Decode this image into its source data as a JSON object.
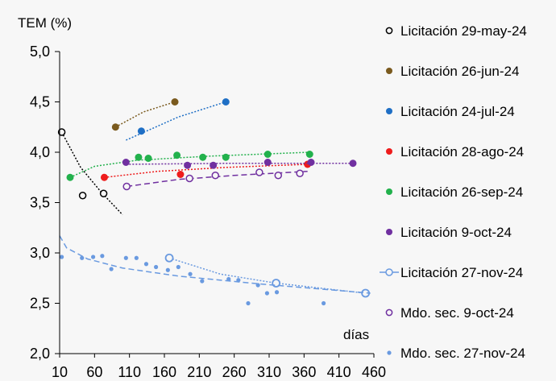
{
  "chart_data": {
    "type": "scatter",
    "title": "",
    "ylabel": "TEM (%)",
    "xlabel": "días",
    "xlim": [
      10,
      460
    ],
    "ylim": [
      2.0,
      5.0
    ],
    "xticks": [
      "10",
      "60",
      "110",
      "160",
      "210",
      "260",
      "310",
      "360",
      "410",
      "460"
    ],
    "yticks": [
      "2,0",
      "2,5",
      "3,0",
      "3,5",
      "4,0",
      "4,5",
      "5,0"
    ],
    "legend_position": "right",
    "series": [
      {
        "name": "Licitación 29-may-24",
        "marker": "open-circle",
        "color": "#000000",
        "points": [
          [
            13,
            4.2
          ],
          [
            43,
            3.57
          ],
          [
            73,
            3.59
          ]
        ],
        "trend": {
          "style": "dotted",
          "points": [
            [
              13,
              4.2
            ],
            [
              40,
              3.85
            ],
            [
              70,
              3.6
            ],
            [
              100,
              3.38
            ]
          ]
        }
      },
      {
        "name": "Licitación 26-jun-24",
        "marker": "filled-circle",
        "color": "#7a5a1e",
        "points": [
          [
            90,
            4.25
          ],
          [
            175,
            4.5
          ]
        ],
        "trend": {
          "style": "dotted",
          "points": [
            [
              90,
              4.25
            ],
            [
              130,
              4.4
            ],
            [
              175,
              4.5
            ]
          ]
        }
      },
      {
        "name": "Licitación 24-jul-24",
        "marker": "filled-circle",
        "color": "#1f6fc5",
        "points": [
          [
            127,
            4.21
          ],
          [
            248,
            4.5
          ]
        ],
        "trend": {
          "style": "dotted",
          "points": [
            [
              105,
              4.12
            ],
            [
              180,
              4.35
            ],
            [
              248,
              4.5
            ]
          ]
        }
      },
      {
        "name": "Licitación 28-ago-24",
        "marker": "filled-circle",
        "color": "#ee1c1c",
        "points": [
          [
            74,
            3.75
          ],
          [
            183,
            3.78
          ],
          [
            365,
            3.88
          ]
        ],
        "trend": {
          "style": "dotted",
          "points": [
            [
              74,
              3.75
            ],
            [
              150,
              3.81
            ],
            [
              250,
              3.85
            ],
            [
              365,
              3.88
            ]
          ]
        }
      },
      {
        "name": "Licitación 26-sep-24",
        "marker": "filled-circle",
        "color": "#22b14c",
        "points": [
          [
            25,
            3.75
          ],
          [
            123,
            3.95
          ],
          [
            137,
            3.94
          ],
          [
            178,
            3.97
          ],
          [
            215,
            3.95
          ],
          [
            248,
            3.95
          ],
          [
            308,
            3.98
          ],
          [
            368,
            3.98
          ]
        ],
        "trend": {
          "style": "dotted",
          "points": [
            [
              25,
              3.75
            ],
            [
              60,
              3.86
            ],
            [
              120,
              3.92
            ],
            [
              220,
              3.96
            ],
            [
              368,
              4.0
            ]
          ]
        }
      },
      {
        "name": "Licitación 9-oct-24",
        "marker": "filled-circle",
        "color": "#7030a0",
        "points": [
          [
            105,
            3.9
          ],
          [
            193,
            3.87
          ],
          [
            230,
            3.87
          ],
          [
            308,
            3.9
          ],
          [
            370,
            3.9
          ],
          [
            430,
            3.89
          ]
        ],
        "trend": {
          "style": "dotted",
          "points": [
            [
              105,
              3.88
            ],
            [
              250,
              3.89
            ],
            [
              430,
              3.89
            ]
          ]
        }
      },
      {
        "name": "Licitación 27-nov-24",
        "marker": "open-circle-line",
        "color": "#6a9ae0",
        "points": [
          [
            167,
            2.95
          ],
          [
            320,
            2.7
          ],
          [
            448,
            2.6
          ]
        ],
        "trend": {
          "style": "dotted",
          "points": [
            [
              167,
              2.95
            ],
            [
              240,
              2.79
            ],
            [
              320,
              2.7
            ],
            [
              448,
              2.6
            ]
          ]
        }
      },
      {
        "name": "Mdo. sec. 9-oct-24",
        "marker": "open-circle",
        "color": "#7030a0",
        "points": [
          [
            106,
            3.66
          ],
          [
            196,
            3.74
          ],
          [
            233,
            3.77
          ],
          [
            296,
            3.8
          ],
          [
            323,
            3.77
          ],
          [
            354,
            3.79
          ]
        ],
        "trend": {
          "style": "dashed",
          "points": [
            [
              106,
              3.66
            ],
            [
              180,
              3.73
            ],
            [
              260,
              3.77
            ],
            [
              365,
              3.81
            ]
          ]
        }
      },
      {
        "name": "Mdo. sec. 27-nov-24",
        "marker": "small-dot",
        "color": "#6a9ae0",
        "points": [
          [
            13,
            2.96
          ],
          [
            42,
            2.95
          ],
          [
            58,
            2.96
          ],
          [
            71,
            2.97
          ],
          [
            84,
            2.84
          ],
          [
            105,
            2.95
          ],
          [
            120,
            2.95
          ],
          [
            134,
            2.89
          ],
          [
            148,
            2.86
          ],
          [
            165,
            2.83
          ],
          [
            180,
            2.86
          ],
          [
            197,
            2.79
          ],
          [
            214,
            2.72
          ],
          [
            252,
            2.74
          ],
          [
            266,
            2.73
          ],
          [
            280,
            2.5
          ],
          [
            294,
            2.68
          ],
          [
            307,
            2.6
          ],
          [
            321,
            2.61
          ],
          [
            388,
            2.5
          ]
        ],
        "trend": {
          "style": "dashed",
          "points": [
            [
              10,
              3.17
            ],
            [
              20,
              3.05
            ],
            [
              50,
              2.94
            ],
            [
              100,
              2.85
            ],
            [
              180,
              2.77
            ],
            [
              300,
              2.69
            ],
            [
              455,
              2.6
            ]
          ]
        }
      }
    ]
  }
}
